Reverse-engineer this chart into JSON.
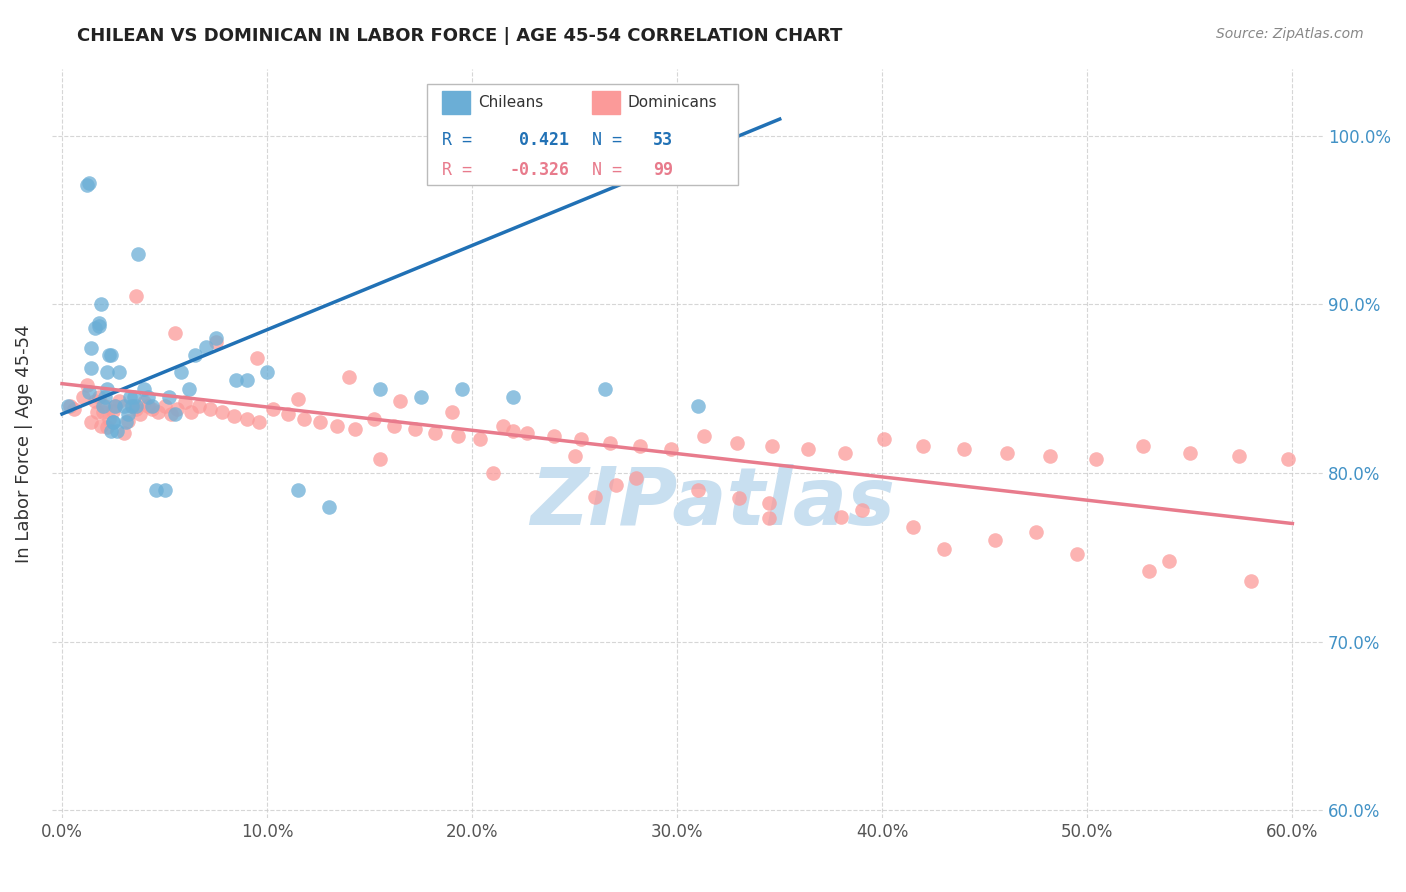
{
  "title": "CHILEAN VS DOMINICAN IN LABOR FORCE | AGE 45-54 CORRELATION CHART",
  "source": "Source: ZipAtlas.com",
  "ylabel": "In Labor Force | Age 45-54",
  "xlim": [
    -0.005,
    0.615
  ],
  "ylim": [
    0.595,
    1.04
  ],
  "xticks": [
    0.0,
    0.1,
    0.2,
    0.3,
    0.4,
    0.5,
    0.6
  ],
  "yticks": [
    0.6,
    0.7,
    0.8,
    0.9,
    1.0
  ],
  "R_chilean": 0.421,
  "N_chilean": 53,
  "R_dominican": -0.326,
  "N_dominican": 99,
  "chilean_color": "#6baed6",
  "dominican_color": "#fb9a99",
  "trend_chilean_color": "#2171b5",
  "trend_dominican_color": "#e87b8c",
  "chilean_scatter_x": [
    0.003,
    0.012,
    0.013,
    0.013,
    0.014,
    0.014,
    0.016,
    0.018,
    0.018,
    0.019,
    0.02,
    0.021,
    0.022,
    0.022,
    0.023,
    0.024,
    0.024,
    0.025,
    0.025,
    0.026,
    0.027,
    0.028,
    0.03,
    0.031,
    0.032,
    0.033,
    0.034,
    0.035,
    0.036,
    0.037,
    0.04,
    0.042,
    0.044,
    0.046,
    0.05,
    0.052,
    0.055,
    0.058,
    0.062,
    0.065,
    0.07,
    0.075,
    0.085,
    0.09,
    0.1,
    0.115,
    0.13,
    0.155,
    0.175,
    0.195,
    0.22,
    0.265,
    0.31
  ],
  "chilean_scatter_y": [
    0.84,
    0.971,
    0.972,
    0.848,
    0.862,
    0.874,
    0.886,
    0.887,
    0.889,
    0.9,
    0.84,
    0.845,
    0.85,
    0.86,
    0.87,
    0.87,
    0.825,
    0.83,
    0.83,
    0.84,
    0.825,
    0.86,
    0.84,
    0.83,
    0.835,
    0.845,
    0.84,
    0.845,
    0.84,
    0.93,
    0.85,
    0.845,
    0.84,
    0.79,
    0.79,
    0.845,
    0.835,
    0.86,
    0.85,
    0.87,
    0.875,
    0.88,
    0.855,
    0.855,
    0.86,
    0.79,
    0.78,
    0.85,
    0.845,
    0.85,
    0.845,
    0.85,
    0.84
  ],
  "dominican_scatter_x": [
    0.004,
    0.006,
    0.01,
    0.012,
    0.014,
    0.016,
    0.017,
    0.018,
    0.019,
    0.02,
    0.021,
    0.022,
    0.023,
    0.025,
    0.026,
    0.028,
    0.03,
    0.032,
    0.034,
    0.036,
    0.038,
    0.04,
    0.042,
    0.044,
    0.047,
    0.05,
    0.053,
    0.056,
    0.06,
    0.063,
    0.067,
    0.072,
    0.078,
    0.084,
    0.09,
    0.096,
    0.103,
    0.11,
    0.118,
    0.126,
    0.134,
    0.143,
    0.152,
    0.162,
    0.172,
    0.182,
    0.193,
    0.204,
    0.215,
    0.227,
    0.24,
    0.253,
    0.267,
    0.282,
    0.297,
    0.313,
    0.329,
    0.346,
    0.364,
    0.382,
    0.401,
    0.42,
    0.44,
    0.461,
    0.482,
    0.504,
    0.527,
    0.55,
    0.574,
    0.598,
    0.036,
    0.055,
    0.075,
    0.095,
    0.115,
    0.14,
    0.165,
    0.19,
    0.22,
    0.25,
    0.28,
    0.31,
    0.345,
    0.38,
    0.415,
    0.455,
    0.495,
    0.54,
    0.475,
    0.39,
    0.33,
    0.27,
    0.21,
    0.155,
    0.53,
    0.58,
    0.43,
    0.345,
    0.26
  ],
  "dominican_scatter_y": [
    0.84,
    0.838,
    0.845,
    0.852,
    0.83,
    0.843,
    0.836,
    0.845,
    0.828,
    0.836,
    0.84,
    0.827,
    0.832,
    0.837,
    0.84,
    0.843,
    0.824,
    0.831,
    0.84,
    0.838,
    0.835,
    0.842,
    0.84,
    0.838,
    0.836,
    0.84,
    0.835,
    0.838,
    0.842,
    0.836,
    0.84,
    0.838,
    0.836,
    0.834,
    0.832,
    0.83,
    0.838,
    0.835,
    0.832,
    0.83,
    0.828,
    0.826,
    0.832,
    0.828,
    0.826,
    0.824,
    0.822,
    0.82,
    0.828,
    0.824,
    0.822,
    0.82,
    0.818,
    0.816,
    0.814,
    0.822,
    0.818,
    0.816,
    0.814,
    0.812,
    0.82,
    0.816,
    0.814,
    0.812,
    0.81,
    0.808,
    0.816,
    0.812,
    0.81,
    0.808,
    0.905,
    0.883,
    0.878,
    0.868,
    0.844,
    0.857,
    0.843,
    0.836,
    0.825,
    0.81,
    0.797,
    0.79,
    0.782,
    0.774,
    0.768,
    0.76,
    0.752,
    0.748,
    0.765,
    0.778,
    0.785,
    0.793,
    0.8,
    0.808,
    0.742,
    0.736,
    0.755,
    0.773,
    0.786
  ],
  "trend_ch_x0": 0.0,
  "trend_ch_x1": 0.35,
  "trend_ch_y0": 0.835,
  "trend_ch_y1": 1.01,
  "trend_dom_x0": 0.0,
  "trend_dom_x1": 0.6,
  "trend_dom_y0": 0.853,
  "trend_dom_y1": 0.77,
  "watermark": "ZIPatlas",
  "watermark_color": "#c8dff0",
  "grid_color": "#cccccc",
  "right_tick_color": "#4292c6",
  "background": "#ffffff"
}
